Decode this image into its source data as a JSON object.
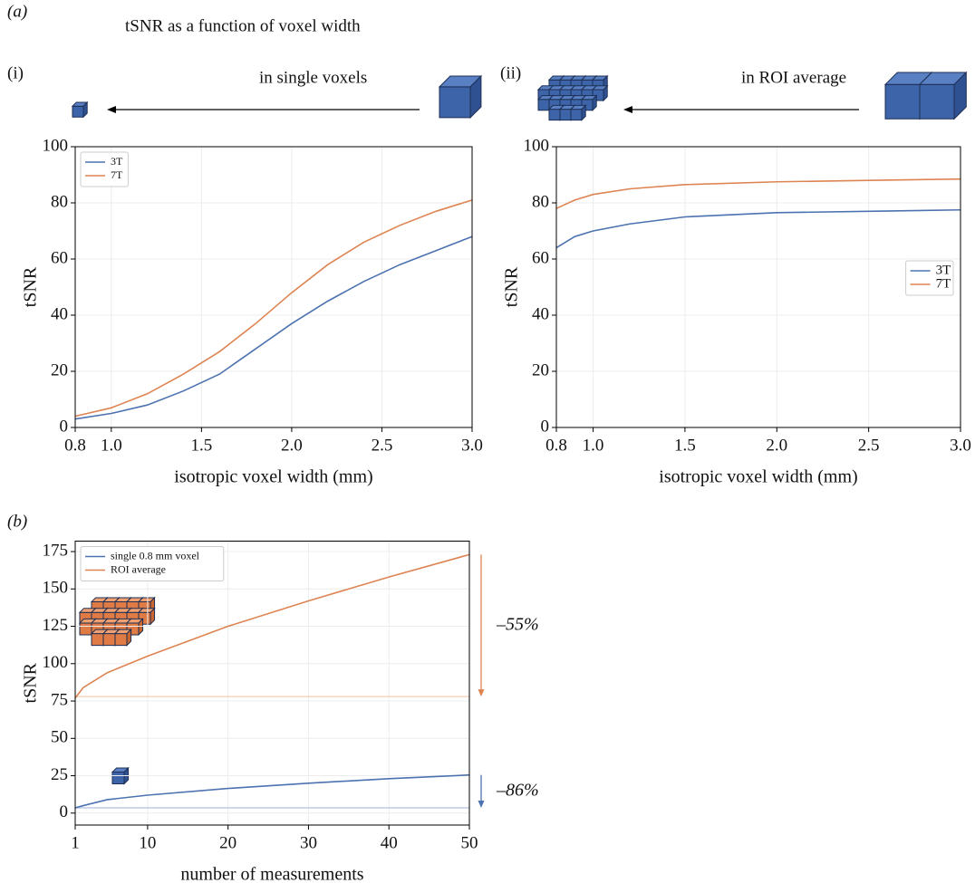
{
  "figure": {
    "panel_a": "(a)",
    "title": "tSNR as a function of voxel width",
    "panel_i": "(i)",
    "caption_i": "in single voxels",
    "panel_ii": "(ii)",
    "caption_ii": "in ROI average",
    "panel_b": "(b)"
  },
  "chart_data": [
    {
      "type": "line",
      "xlabel": "isotropic voxel width (mm)",
      "ylabel": "tSNR",
      "x": [
        0.8,
        1.0,
        1.2,
        1.4,
        1.6,
        1.8,
        2.0,
        2.2,
        2.4,
        2.6,
        2.8,
        3.0
      ],
      "series": [
        {
          "name": "3T",
          "color": "#4c72b0",
          "values": [
            3,
            5,
            8,
            13,
            19,
            28,
            37,
            45,
            52,
            58,
            63,
            68
          ]
        },
        {
          "name": "7T",
          "color": "#dd8452",
          "values": [
            4,
            7,
            12,
            19,
            27,
            37,
            48,
            58,
            66,
            72,
            77,
            81
          ]
        }
      ],
      "xlim": [
        0.8,
        3.0
      ],
      "ylim": [
        0,
        100
      ],
      "xticks": [
        0.8,
        {
          "value": 1,
          "label": "1.0"
        },
        1.5,
        {
          "value": 2,
          "label": "2.0"
        },
        2.5,
        {
          "value": 3,
          "label": "3.0"
        }
      ],
      "yticks": [
        0,
        20,
        40,
        60,
        80,
        100
      ],
      "grid": true,
      "legend": "upper left"
    },
    {
      "type": "line",
      "xlabel": "isotropic voxel width (mm)",
      "ylabel": "tSNR",
      "x": [
        0.8,
        0.9,
        1.0,
        1.2,
        1.5,
        2.0,
        2.5,
        3.0
      ],
      "series": [
        {
          "name": "3T",
          "color": "#4c72b0",
          "values": [
            64,
            68,
            70,
            72.5,
            75,
            76.5,
            77,
            77.5
          ]
        },
        {
          "name": "7T",
          "color": "#dd8452",
          "values": [
            78,
            81,
            83,
            85,
            86.5,
            87.5,
            88,
            88.5
          ]
        }
      ],
      "xlim": [
        0.8,
        3.0
      ],
      "ylim": [
        0,
        100
      ],
      "xticks": [
        0.8,
        {
          "value": 1,
          "label": "1.0"
        },
        1.5,
        {
          "value": 2,
          "label": "2.0"
        },
        2.5,
        {
          "value": 3,
          "label": "3.0"
        }
      ],
      "yticks": [
        0,
        20,
        40,
        60,
        80,
        100
      ],
      "grid": true,
      "legend": "center right"
    },
    {
      "type": "line",
      "xlabel": "number of measurements",
      "ylabel": "tSNR",
      "x": [
        1,
        2,
        5,
        10,
        20,
        30,
        40,
        50
      ],
      "series": [
        {
          "name": "single 0.8 mm voxel",
          "color": "#4c72b0",
          "values": [
            3.5,
            5,
            9,
            12,
            16.5,
            20,
            23,
            25.5
          ]
        },
        {
          "name": "ROI average",
          "color": "#dd8452",
          "values": [
            77,
            84,
            94,
            105,
            125,
            142,
            158,
            173
          ]
        }
      ],
      "reference_lines": [
        {
          "value": 3.5,
          "color": "#b3c1e0"
        },
        {
          "value": 78,
          "color": "#f3cdb2"
        }
      ],
      "annotations": [
        "–86%",
        "–55%"
      ],
      "xlim": [
        1,
        50
      ],
      "ylim": [
        -8,
        182
      ],
      "xticks": [
        1,
        10,
        20,
        30,
        40,
        50
      ],
      "yticks": [
        0,
        25,
        50,
        75,
        100,
        125,
        150,
        175
      ],
      "grid": true,
      "legend": "upper left"
    }
  ]
}
